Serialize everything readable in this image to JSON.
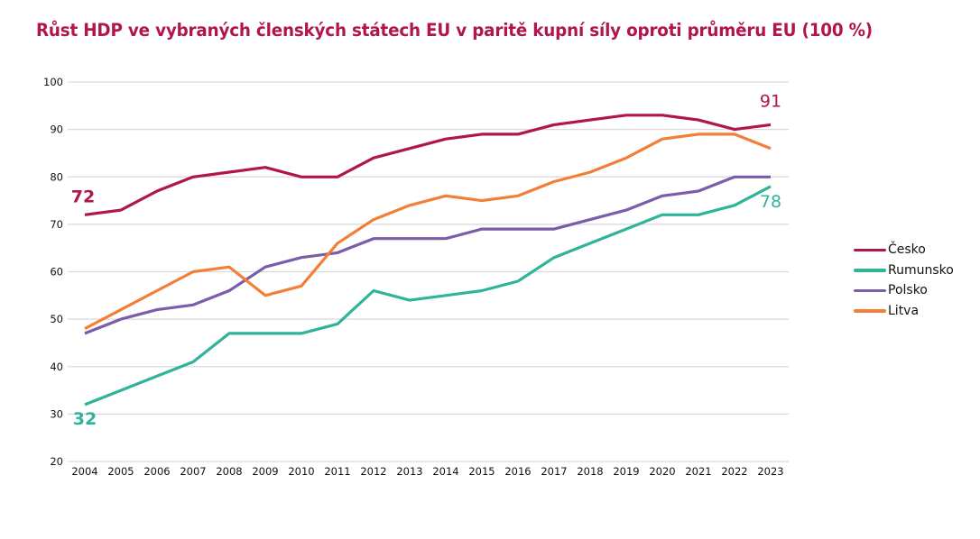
{
  "chart_data": {
    "type": "line",
    "title": "Růst HDP ve vybraných členských státech EU v paritě kupní síly oproti průměru EU (100 %)",
    "xlabel": "",
    "ylabel": "",
    "ylim": [
      20,
      100
    ],
    "yticks": [
      "20",
      "30",
      "40",
      "50",
      "60",
      "70",
      "80",
      "90",
      "100"
    ],
    "ytick_values": [
      20,
      30,
      40,
      50,
      60,
      70,
      80,
      90,
      100
    ],
    "grid": true,
    "legend_position": "right",
    "x": [
      "2004",
      "2005",
      "2006",
      "2007",
      "2008",
      "2009",
      "2010",
      "2011",
      "2012",
      "2013",
      "2014",
      "2015",
      "2016",
      "2017",
      "2018",
      "2019",
      "2020",
      "2021",
      "2022",
      "2023"
    ],
    "series": [
      {
        "name": "Česko",
        "color": "#b0154f",
        "values": [
          72,
          73,
          77,
          80,
          81,
          82,
          80,
          80,
          84,
          86,
          88,
          89,
          89,
          91,
          92,
          93,
          93,
          92,
          90,
          91
        ]
      },
      {
        "name": "Rumunsko",
        "color": "#2fb39a",
        "values": [
          32,
          35,
          38,
          41,
          47,
          47,
          47,
          49,
          56,
          54,
          55,
          56,
          58,
          63,
          66,
          69,
          72,
          72,
          74,
          78
        ]
      },
      {
        "name": "Polsko",
        "color": "#7a5ca8",
        "values": [
          47,
          50,
          52,
          53,
          56,
          61,
          63,
          64,
          67,
          67,
          67,
          69,
          69,
          69,
          71,
          73,
          76,
          77,
          80,
          80
        ]
      },
      {
        "name": "Litva",
        "color": "#f27f35",
        "values": [
          48,
          52,
          56,
          60,
          61,
          55,
          57,
          66,
          71,
          74,
          76,
          75,
          76,
          79,
          81,
          84,
          88,
          89,
          89,
          86
        ]
      }
    ],
    "annotations": [
      {
        "text": "72",
        "series": "Česko",
        "x": "2004",
        "bold": true
      },
      {
        "text": "32",
        "series": "Rumunsko",
        "x": "2004",
        "bold": true
      },
      {
        "text": "91",
        "series": "Česko",
        "x": "2023",
        "bold": false
      },
      {
        "text": "78",
        "series": "Rumunsko",
        "x": "2023",
        "bold": false
      }
    ]
  }
}
